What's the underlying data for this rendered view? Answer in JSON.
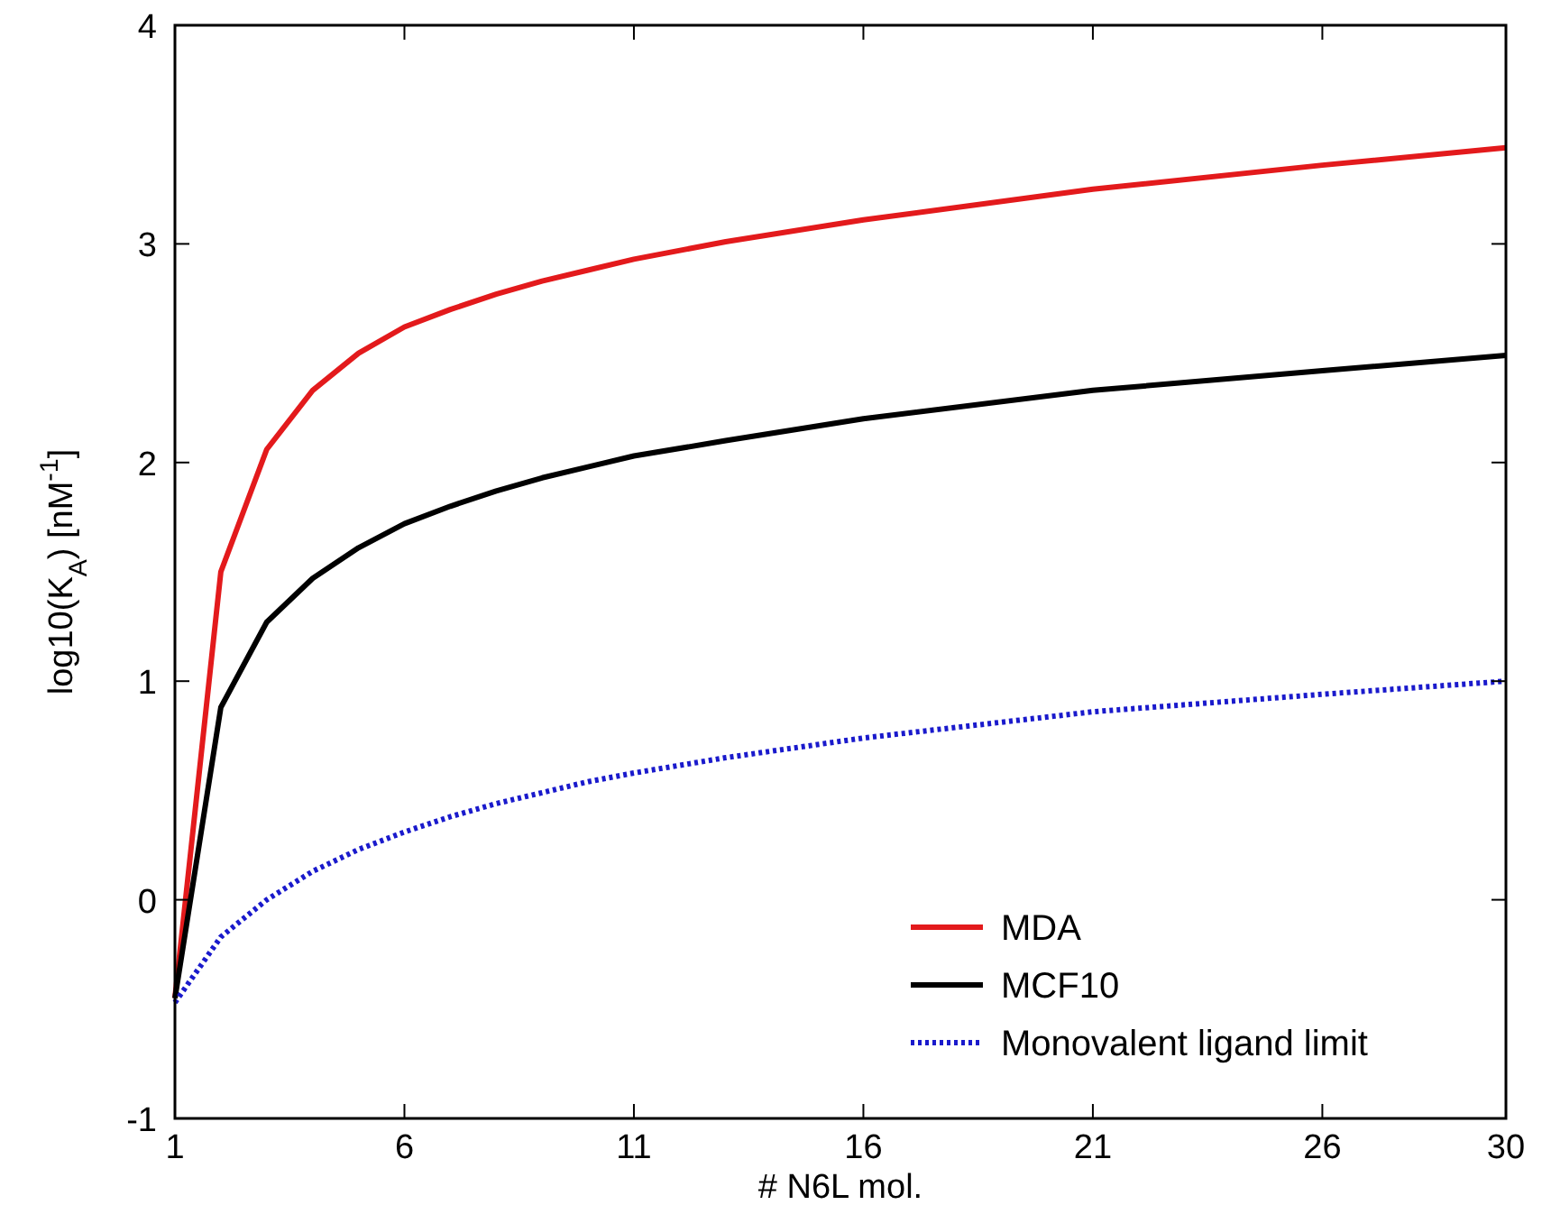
{
  "chart_data": {
    "type": "line",
    "xlabel": "# N6L mol.",
    "ylabel": "log10(K$_{A}$) [nM$^{-1}$]",
    "xlim": [
      1,
      30
    ],
    "xticks": [
      1,
      6,
      11,
      16,
      21,
      26,
      30
    ],
    "ylim": [
      -1,
      4
    ],
    "yticks": [
      -1,
      0,
      1,
      2,
      3,
      4
    ],
    "grid": false,
    "legend": "bottom right",
    "series": [
      {
        "name": "MDA",
        "color": "#e31a1c",
        "x": [
          1,
          2,
          3,
          4,
          5,
          6,
          7,
          8,
          9,
          10,
          11,
          13,
          16,
          21,
          26,
          30
        ],
        "values": [
          -0.45,
          1.5,
          2.06,
          2.33,
          2.5,
          2.62,
          2.7,
          2.77,
          2.83,
          2.88,
          2.93,
          3.01,
          3.11,
          3.25,
          3.36,
          3.44
        ]
      },
      {
        "name": "MCF10",
        "color": "#000000",
        "x": [
          1,
          2,
          3,
          4,
          5,
          6,
          7,
          8,
          9,
          10,
          11,
          13,
          16,
          21,
          26,
          30
        ],
        "values": [
          -0.45,
          0.88,
          1.27,
          1.47,
          1.61,
          1.72,
          1.8,
          1.87,
          1.93,
          1.98,
          2.03,
          2.1,
          2.2,
          2.33,
          2.42,
          2.49
        ]
      },
      {
        "name": "Monovalent ligand limit",
        "color": "#1a1acc",
        "line_style": "dotted",
        "x": [
          1,
          2,
          3,
          4,
          5,
          6,
          7,
          8,
          9,
          10,
          11,
          13,
          16,
          21,
          26,
          30
        ],
        "values": [
          -0.47,
          -0.17,
          0.0,
          0.13,
          0.23,
          0.31,
          0.38,
          0.44,
          0.49,
          0.54,
          0.58,
          0.65,
          0.74,
          0.86,
          0.94,
          1.0
        ]
      }
    ]
  }
}
